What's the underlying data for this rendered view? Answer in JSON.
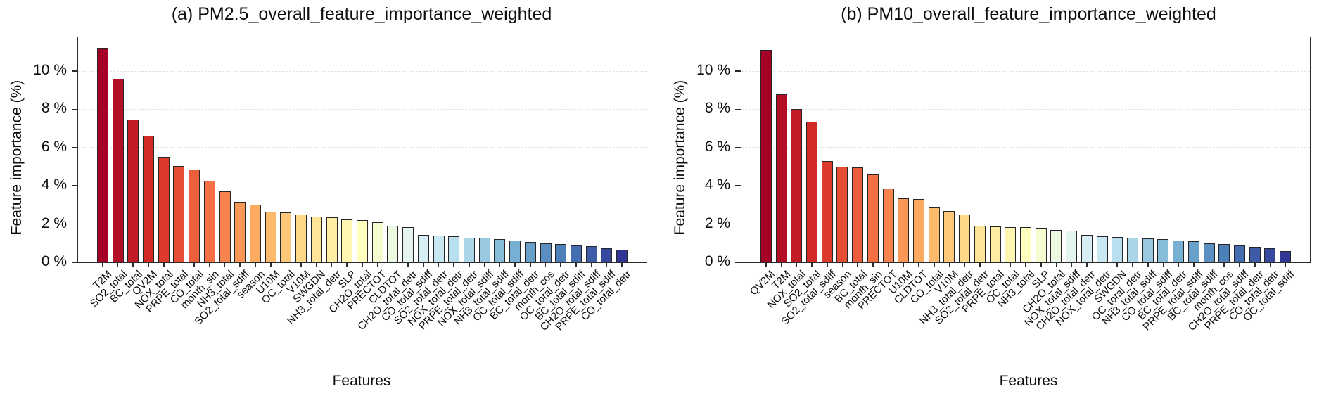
{
  "figure": {
    "kind": "matplotlib-style dual bar figure",
    "background": "#ffffff"
  },
  "chart_data": [
    {
      "type": "bar",
      "title": "(a) PM2.5_overall_feature_importance_weighted",
      "xlabel": "Features",
      "ylabel": "Feature importance (%)",
      "ylim": [
        0,
        11.76
      ],
      "grid": "horizontal dashed at y ticks",
      "legend": "none",
      "ytick_values": [
        0,
        2,
        4,
        6,
        8,
        10
      ],
      "ytick_labels": [
        "0 %",
        "2 %",
        "4 %",
        "6 %",
        "8 %",
        "10 %"
      ],
      "categories": [
        "T2M",
        "SO2_total",
        "BC_total",
        "QV2M",
        "NOX_total",
        "PRPE_total",
        "CO_total",
        "month_sin",
        "NH3_total",
        "SO2_total_sdiff",
        "season",
        "U10M",
        "OC_total",
        "V10M",
        "SWGDN",
        "NH3_total_detr",
        "SLP",
        "CH2O_total",
        "PRECTOT",
        "CLDTOT",
        "CH2O_total_detr",
        "CO_total_sdiff",
        "SO2_total_detr",
        "NOX_total_detr",
        "PRPE_total_detr",
        "NOX_total_sdiff",
        "NH3_total_sdiff",
        "OC_total_sdiff",
        "BC_total_detr",
        "month_cos",
        "OC_total_detr",
        "BC_total_sdiff",
        "CH2O_total_sdiff",
        "PRPE_total_sdiff",
        "CO_total_detr"
      ],
      "values": [
        11.2,
        9.6,
        7.45,
        6.6,
        5.5,
        5.05,
        4.85,
        4.25,
        3.7,
        3.15,
        3.0,
        2.65,
        2.6,
        2.5,
        2.4,
        2.35,
        2.25,
        2.2,
        2.1,
        1.9,
        1.85,
        1.45,
        1.4,
        1.35,
        1.3,
        1.28,
        1.22,
        1.15,
        1.05,
        1.0,
        0.95,
        0.9,
        0.85,
        0.72,
        0.65
      ]
    },
    {
      "type": "bar",
      "title": "(b) PM10_overall_feature_importance_weighted",
      "xlabel": "Features",
      "ylabel": "Feature importance (%)",
      "ylim": [
        0,
        11.76
      ],
      "grid": "horizontal dashed at y ticks",
      "legend": "none",
      "ytick_values": [
        0,
        2,
        4,
        6,
        8,
        10
      ],
      "ytick_labels": [
        "0 %",
        "2 %",
        "4 %",
        "6 %",
        "8 %",
        "10 %"
      ],
      "categories": [
        "QV2M",
        "T2M",
        "NOX_total",
        "SO2_total",
        "SO2_total_sdiff",
        "season",
        "BC_total",
        "month_sin",
        "PRECTOT",
        "U10M",
        "CLDTOT",
        "CO_total",
        "V10M",
        "NH3_total_detr",
        "SO2_total_detr",
        "PRPE_total",
        "OC_total",
        "NH3_total",
        "SLP",
        "CH2O_total",
        "NOX_total_sdiff",
        "CH2O_total_detr",
        "NOX_total_detr",
        "SWGDN",
        "OC_total_detr",
        "NH3_total_sdiff",
        "CO_total_sdiff",
        "BC_total_detr",
        "PRPE_total_sdiff",
        "BC_total_sdiff",
        "month_cos",
        "CH2O_total_sdiff",
        "PRPE_total_detr",
        "CO_total_detr",
        "OC_total_sdiff"
      ],
      "values": [
        11.1,
        8.8,
        8.0,
        7.35,
        5.3,
        5.0,
        4.95,
        4.6,
        3.85,
        3.35,
        3.3,
        2.9,
        2.7,
        2.5,
        1.9,
        1.88,
        1.85,
        1.85,
        1.8,
        1.7,
        1.65,
        1.45,
        1.35,
        1.32,
        1.3,
        1.25,
        1.2,
        1.15,
        1.1,
        1.0,
        0.95,
        0.9,
        0.8,
        0.75,
        0.6
      ]
    }
  ],
  "colors": {
    "colormap_rdylbu_anchors": [
      "#a50026",
      "#d73027",
      "#f46d43",
      "#fdae61",
      "#fee090",
      "#ffffbf",
      "#e0f3f8",
      "#abd9e9",
      "#74add1",
      "#4575b4",
      "#313695"
    ],
    "bar_edge": "#262626",
    "axis_frame": "#2b2b2b",
    "gridline": "#e2e2e2",
    "text": "#0d0d0d",
    "background": "#ffffff"
  }
}
